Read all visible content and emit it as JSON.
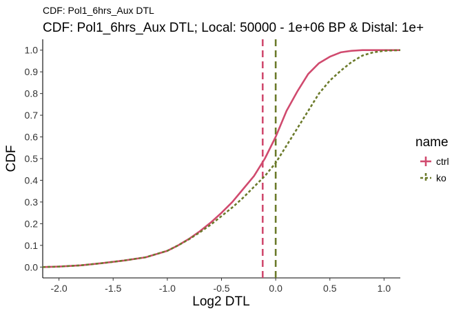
{
  "chart_data": {
    "type": "line",
    "subtitle_small": "CDF: Pol1_6hrs_Aux DTL",
    "title": "CDF: Pol1_6hrs_Aux DTL; Local: 50000 - 1e+06 BP & Distal: 1e+",
    "xlabel": "Log2 DTL",
    "ylabel": "CDF",
    "xlim": [
      -2.15,
      1.15
    ],
    "ylim": [
      -0.05,
      1.05
    ],
    "x_ticks": [
      -2.0,
      -1.5,
      -1.0,
      -0.5,
      0.0,
      0.5,
      1.0
    ],
    "x_tick_labels": [
      "-2.0",
      "-1.5",
      "-1.0",
      "-0.5",
      "0.0",
      "0.5",
      "1.0"
    ],
    "y_ticks": [
      0,
      0.1,
      0.2,
      0.3,
      0.4,
      0.5,
      0.6,
      0.7,
      0.8,
      0.9,
      1.0
    ],
    "y_tick_labels": [
      "0.0",
      "0.1",
      "0.2",
      "0.3",
      "0.4",
      "0.5",
      "0.6",
      "0.7",
      "0.8",
      "0.9",
      "1.0"
    ],
    "grid": false,
    "legend": {
      "title": "name",
      "placement": "right"
    },
    "series": [
      {
        "name": "ctrl",
        "color": "#d04a6e",
        "dash": "solid",
        "median_line_x": -0.12,
        "x": [
          -2.15,
          -2.0,
          -1.8,
          -1.6,
          -1.4,
          -1.2,
          -1.0,
          -0.9,
          -0.8,
          -0.7,
          -0.6,
          -0.5,
          -0.4,
          -0.3,
          -0.2,
          -0.1,
          0.0,
          0.1,
          0.2,
          0.3,
          0.4,
          0.5,
          0.6,
          0.7,
          0.8,
          0.9,
          1.0,
          1.15
        ],
        "y": [
          0.0,
          0.002,
          0.008,
          0.018,
          0.03,
          0.045,
          0.075,
          0.1,
          0.13,
          0.165,
          0.205,
          0.25,
          0.3,
          0.36,
          0.42,
          0.5,
          0.6,
          0.72,
          0.81,
          0.89,
          0.94,
          0.97,
          0.99,
          0.997,
          1.0,
          1.0,
          1.0,
          1.0
        ]
      },
      {
        "name": "ko",
        "color": "#6b7a2a",
        "dash": "dashed",
        "median_line_x": 0.0,
        "x": [
          -2.15,
          -2.0,
          -1.8,
          -1.6,
          -1.4,
          -1.2,
          -1.0,
          -0.9,
          -0.8,
          -0.7,
          -0.6,
          -0.5,
          -0.4,
          -0.3,
          -0.2,
          -0.1,
          0.0,
          0.1,
          0.2,
          0.3,
          0.4,
          0.5,
          0.6,
          0.7,
          0.8,
          0.9,
          1.0,
          1.15
        ],
        "y": [
          0.0,
          0.002,
          0.008,
          0.018,
          0.03,
          0.045,
          0.075,
          0.1,
          0.128,
          0.16,
          0.195,
          0.235,
          0.275,
          0.32,
          0.37,
          0.42,
          0.48,
          0.56,
          0.64,
          0.72,
          0.8,
          0.86,
          0.905,
          0.945,
          0.975,
          0.99,
          0.997,
          1.0
        ]
      }
    ]
  }
}
